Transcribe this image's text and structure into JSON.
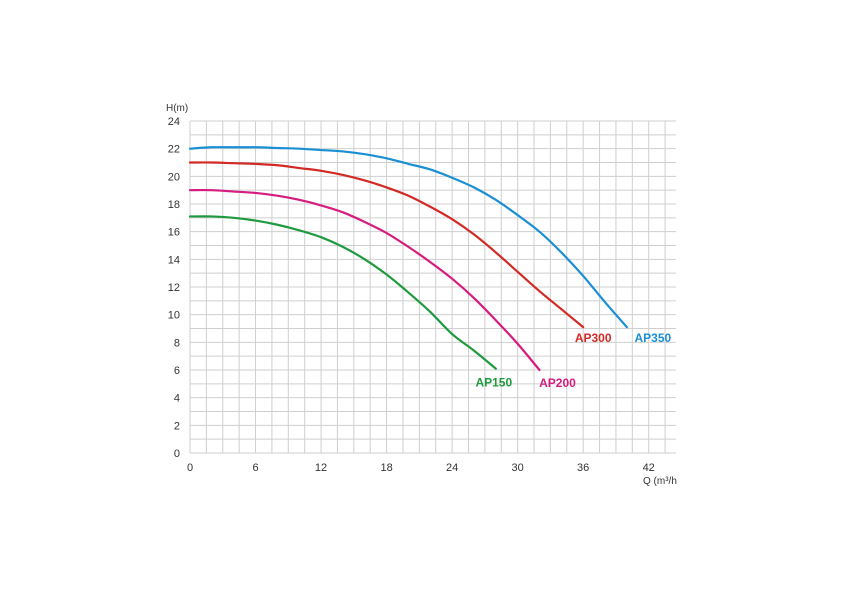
{
  "chart_data": {
    "type": "line",
    "title": "",
    "xlabel": "Q (m³/h",
    "ylabel": "H(m)",
    "xlim": [
      0,
      44.5
    ],
    "ylim": [
      0,
      24
    ],
    "x_ticks": [
      "0",
      "6",
      "12",
      "18",
      "24",
      "30",
      "36",
      "42"
    ],
    "y_ticks": [
      "0",
      "2",
      "4",
      "6",
      "8",
      "10",
      "12",
      "14",
      "16",
      "18",
      "20",
      "22",
      "24"
    ],
    "grid": true,
    "series": [
      {
        "name": "AP150",
        "color": "#1f9a3e",
        "x": [
          0,
          2,
          4,
          6,
          8,
          10,
          12,
          14,
          16,
          18,
          20,
          22,
          24,
          26,
          28
        ],
        "y": [
          17.1,
          17.1,
          17.0,
          16.8,
          16.5,
          16.1,
          15.6,
          14.9,
          14.0,
          12.9,
          11.6,
          10.2,
          8.6,
          7.4,
          6.1
        ]
      },
      {
        "name": "AP200",
        "color": "#d61c7f",
        "x": [
          0,
          2,
          4,
          6,
          8,
          10,
          12,
          14,
          16,
          18,
          20,
          22,
          24,
          26,
          28,
          30,
          32
        ],
        "y": [
          19.0,
          19.0,
          18.9,
          18.8,
          18.6,
          18.3,
          17.9,
          17.4,
          16.7,
          15.9,
          14.9,
          13.8,
          12.6,
          11.2,
          9.6,
          7.9,
          6.0
        ]
      },
      {
        "name": "AP300",
        "color": "#d22a25",
        "x": [
          0,
          2,
          4,
          6,
          8,
          10,
          12,
          14,
          16,
          18,
          20,
          22,
          24,
          26,
          28,
          30,
          32,
          34,
          36
        ],
        "y": [
          21.0,
          21.0,
          20.95,
          20.9,
          20.8,
          20.6,
          20.4,
          20.1,
          19.7,
          19.2,
          18.6,
          17.8,
          16.9,
          15.8,
          14.5,
          13.1,
          11.7,
          10.4,
          9.1
        ]
      },
      {
        "name": "AP350",
        "color": "#1b8fd3",
        "x": [
          0,
          2,
          4,
          6,
          8,
          10,
          12,
          14,
          16,
          18,
          20,
          22,
          24,
          26,
          28,
          30,
          32,
          34,
          36,
          38,
          40
        ],
        "y": [
          22.0,
          22.1,
          22.1,
          22.1,
          22.05,
          22.0,
          21.9,
          21.8,
          21.6,
          21.3,
          20.9,
          20.5,
          19.9,
          19.2,
          18.3,
          17.2,
          16.0,
          14.5,
          12.8,
          10.9,
          9.1
        ]
      }
    ]
  }
}
